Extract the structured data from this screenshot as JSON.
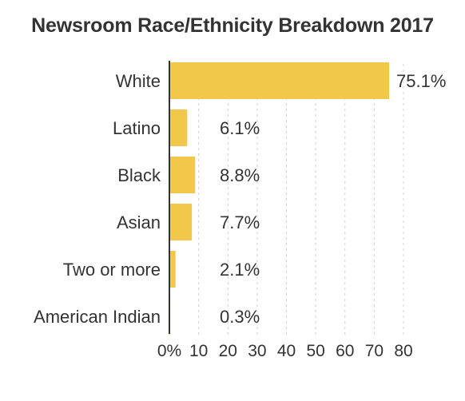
{
  "chart_data": {
    "type": "bar",
    "orientation": "horizontal",
    "title": "Newsroom Race/Ethnicity Breakdown 2017",
    "categories": [
      "White",
      "Latino",
      "Black",
      "Asian",
      "Two or more",
      "American Indian"
    ],
    "values": [
      75.1,
      6.1,
      8.8,
      7.7,
      2.1,
      0.3
    ],
    "value_labels": [
      "75.1%",
      "6.1%",
      "8.8%",
      "7.7%",
      "2.1%",
      "0.3%"
    ],
    "xlim": [
      0,
      80
    ],
    "x_ticks": [
      0,
      10,
      20,
      30,
      40,
      50,
      60,
      70,
      80
    ],
    "x_tick_labels": [
      "0%",
      "10",
      "20",
      "30",
      "40",
      "50",
      "60",
      "70",
      "80"
    ],
    "grid": "vertical dashed",
    "bar_color": "#f2c84b",
    "grid_color": "#d0d0d0",
    "axis_color": "#333333"
  }
}
